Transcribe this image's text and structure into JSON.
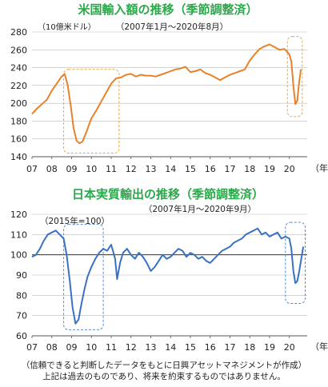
{
  "colors": {
    "title": "#2aa84a",
    "imports_line": "#e8822a",
    "exports_line": "#3a72c2",
    "imports_box": "#e8a93a",
    "exports_box": "#5a8ed0",
    "grid": "#bbbbbb"
  },
  "chart_data": [
    {
      "type": "line",
      "title": "米国輸入額の推移（季節調整済）",
      "subtitle": "（2007年1月～2020年8月）",
      "ylabel": "（10億米ドル）",
      "x_unit": "（年）",
      "x_tick_labels": [
        "07",
        "08",
        "09",
        "10",
        "11",
        "12",
        "13",
        "14",
        "15",
        "16",
        "17",
        "18",
        "19",
        "20"
      ],
      "ylim": [
        140,
        280
      ],
      "y_ticks": [
        140,
        160,
        180,
        200,
        220,
        240,
        260,
        280
      ],
      "grid": "horizontal",
      "highlight_ranges": [
        [
          2008.6,
          2011.4
        ],
        [
          2019.9,
          2020.65
        ]
      ],
      "series": [
        {
          "x": [
            2007.0,
            2007.25,
            2007.5,
            2007.75,
            2008.0,
            2008.25,
            2008.5,
            2008.65,
            2008.8,
            2008.95,
            2009.1,
            2009.25,
            2009.4,
            2009.55,
            2009.75,
            2010.0,
            2010.25,
            2010.5,
            2010.75,
            2011.0,
            2011.25,
            2011.5,
            2011.75,
            2012.0,
            2012.25,
            2012.5,
            2012.75,
            2013.0,
            2013.25,
            2013.5,
            2013.75,
            2014.0,
            2014.25,
            2014.5,
            2014.75,
            2015.0,
            2015.25,
            2015.5,
            2015.75,
            2016.0,
            2016.25,
            2016.5,
            2016.75,
            2017.0,
            2017.25,
            2017.5,
            2017.75,
            2018.0,
            2018.25,
            2018.5,
            2018.75,
            2019.0,
            2019.25,
            2019.5,
            2019.75,
            2020.0,
            2020.1,
            2020.2,
            2020.3,
            2020.4,
            2020.5,
            2020.58
          ],
          "values": [
            188,
            194,
            199,
            204,
            214,
            222,
            230,
            233,
            221,
            198,
            172,
            158,
            155,
            157,
            168,
            183,
            192,
            202,
            212,
            222,
            228,
            229,
            232,
            233,
            230,
            232,
            231,
            231,
            230,
            232,
            234,
            236,
            238,
            239,
            241,
            235,
            236,
            238,
            234,
            232,
            229,
            226,
            229,
            232,
            234,
            236,
            238,
            248,
            255,
            261,
            264,
            266,
            263,
            260,
            261,
            255,
            247,
            220,
            199,
            203,
            225,
            238
          ]
        }
      ]
    },
    {
      "type": "line",
      "title": "日本実質輸出の推移（季節調整済）",
      "subtitle": "（2007年1月～2020年9月）",
      "annotation": "（2015年=100）",
      "x_unit": "（年）",
      "x_tick_labels": [
        "07",
        "08",
        "09",
        "10",
        "11",
        "12",
        "13",
        "14",
        "15",
        "16",
        "17",
        "18",
        "19",
        "20"
      ],
      "ylim": [
        60,
        120
      ],
      "y_ticks": [
        60,
        70,
        80,
        90,
        100,
        110,
        120
      ],
      "reference_line": 100,
      "grid": "horizontal",
      "highlight_ranges": [
        [
          2008.6,
          2010.6
        ],
        [
          2019.8,
          2020.8
        ]
      ],
      "series": [
        {
          "x": [
            2007.0,
            2007.2,
            2007.4,
            2007.6,
            2007.8,
            2008.0,
            2008.2,
            2008.4,
            2008.6,
            2008.75,
            2008.9,
            2009.05,
            2009.2,
            2009.35,
            2009.5,
            2009.65,
            2009.8,
            2010.0,
            2010.2,
            2010.4,
            2010.6,
            2010.8,
            2011.0,
            2011.2,
            2011.3,
            2011.45,
            2011.6,
            2011.8,
            2012.0,
            2012.2,
            2012.4,
            2012.6,
            2012.8,
            2013.0,
            2013.2,
            2013.4,
            2013.6,
            2013.8,
            2014.0,
            2014.2,
            2014.4,
            2014.6,
            2014.8,
            2015.0,
            2015.2,
            2015.4,
            2015.6,
            2015.8,
            2016.0,
            2016.2,
            2016.4,
            2016.6,
            2016.8,
            2017.0,
            2017.2,
            2017.4,
            2017.6,
            2017.8,
            2018.0,
            2018.2,
            2018.4,
            2018.6,
            2018.8,
            2019.0,
            2019.2,
            2019.4,
            2019.6,
            2019.8,
            2020.0,
            2020.1,
            2020.2,
            2020.3,
            2020.4,
            2020.5,
            2020.6,
            2020.7
          ],
          "values": [
            99,
            100,
            103,
            107,
            110,
            111,
            112,
            110,
            108,
            100,
            88,
            74,
            66,
            68,
            76,
            83,
            89,
            94,
            98,
            101,
            103,
            102,
            105,
            98,
            88,
            96,
            101,
            103,
            100,
            98,
            101,
            99,
            96,
            92,
            94,
            97,
            100,
            98,
            99,
            101,
            103,
            102,
            99,
            101,
            100,
            98,
            99,
            97,
            96,
            98,
            100,
            102,
            103,
            104,
            106,
            107,
            108,
            110,
            111,
            112,
            113,
            110,
            111,
            109,
            110,
            111,
            108,
            109,
            108,
            103,
            92,
            86,
            87,
            92,
            98,
            104
          ]
        }
      ]
    }
  ],
  "disclaimer": [
    "（信頼できると判断したデータをもとに日興アセットマネジメントが作成）",
    "上記は過去のものであり、将来を約束するものではありません。"
  ]
}
